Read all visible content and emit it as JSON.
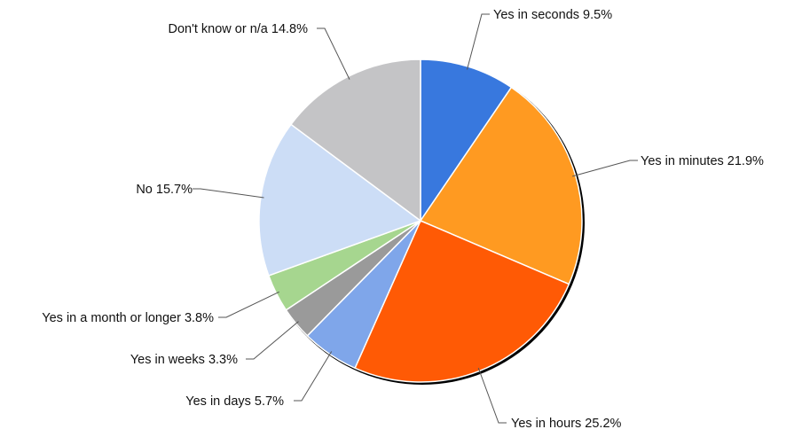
{
  "chart_data": {
    "type": "pie",
    "title": "",
    "start_angle_deg": 0,
    "direction": "clockwise",
    "slices": [
      {
        "name": "Yes in seconds",
        "value": 9.5,
        "label": "Yes in seconds 9.5%",
        "color": "#3878DE"
      },
      {
        "name": "Yes in minutes",
        "value": 21.9,
        "label": "Yes in minutes 21.9%",
        "color": "#FF9A21"
      },
      {
        "name": "Yes in hours",
        "value": 25.2,
        "label": "Yes in hours 25.2%",
        "color": "#FF5A05"
      },
      {
        "name": "Yes in days",
        "value": 5.7,
        "label": "Yes in days 5.7%",
        "color": "#7FA6EA"
      },
      {
        "name": "Yes in weeks",
        "value": 3.3,
        "label": "Yes in weeks 3.3%",
        "color": "#9A9A9A"
      },
      {
        "name": "Yes in a month or longer",
        "value": 3.8,
        "label": "Yes in a month or longer 3.8%",
        "color": "#A6D68F"
      },
      {
        "name": "No",
        "value": 15.7,
        "label": "No 15.7%",
        "color": "#CCDDF6"
      },
      {
        "name": "Don't know or n/a",
        "value": 14.8,
        "label": "Don't know or n/a 14.8%",
        "color": "#C4C4C6"
      }
    ]
  }
}
